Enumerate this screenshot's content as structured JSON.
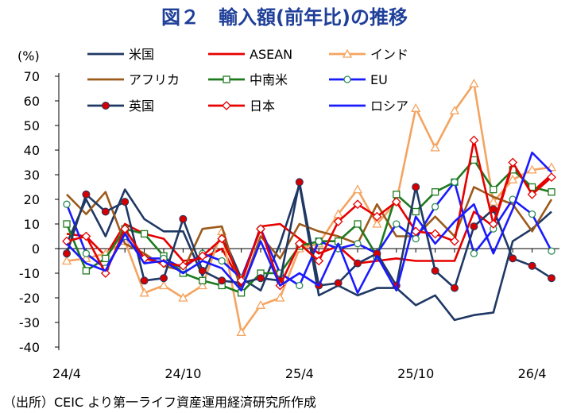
{
  "chart_data": {
    "type": "line",
    "title": "図２　輸入額(前年比)の推移",
    "ylabel": "(%)",
    "xlabel": "",
    "ylim": [
      -40,
      70
    ],
    "yticks": [
      -40,
      -30,
      -20,
      -10,
      0,
      10,
      20,
      30,
      40,
      50,
      60,
      70
    ],
    "x_tick_labels": [
      "24/4",
      "24/10",
      "25/4",
      "25/10",
      "26/4"
    ],
    "x_tick_index": [
      0,
      6,
      12,
      18,
      24
    ],
    "grid": false,
    "legend_position": "top",
    "source_note": "（出所）CEIC より第一ライフ資産運用経済研究所作成",
    "series": [
      {
        "name": "米国",
        "color": "#1f3864",
        "marker": "none",
        "values": [
          2,
          20,
          5,
          24,
          12,
          7,
          7,
          -11,
          6,
          -12,
          -17,
          2,
          26,
          -19,
          -15,
          -19,
          -16,
          -16,
          -23,
          -19,
          -29,
          -27,
          -26,
          3,
          8,
          15
        ]
      },
      {
        "name": "ASEAN",
        "color": "#e60000",
        "marker": "none",
        "values": [
          6,
          5,
          -3,
          10,
          6,
          4,
          -5,
          -4,
          0,
          -14,
          9,
          10,
          4,
          -2,
          1,
          -6,
          -5,
          -4,
          -5,
          -5,
          -5,
          15,
          9,
          34,
          23,
          30
        ]
      },
      {
        "name": "インド",
        "color": "#f4a460",
        "marker": "triangle",
        "values": [
          -5,
          -4,
          -2,
          3,
          -18,
          -15,
          -20,
          -15,
          7,
          -34,
          -23,
          -20,
          0,
          2,
          14,
          24,
          10,
          19,
          57,
          41,
          56,
          67,
          19,
          28,
          32,
          33
        ]
      },
      {
        "name": "アフリカ",
        "color": "#9c5a1b",
        "marker": "none",
        "values": [
          22,
          14,
          23,
          2,
          -2,
          -7,
          -9,
          8,
          9,
          -17,
          5,
          -4,
          10,
          7,
          5,
          2,
          18,
          5,
          5,
          13,
          5,
          25,
          21,
          18,
          7,
          20
        ]
      },
      {
        "name": "中南米",
        "color": "#1e7a1e",
        "marker": "square",
        "values": [
          10,
          -9,
          -4,
          8,
          6,
          -3,
          -10,
          -13,
          -15,
          -18,
          -10,
          -10,
          1,
          3,
          3,
          10,
          -3,
          22,
          15,
          23,
          27,
          36,
          24,
          32,
          25,
          23
        ]
      },
      {
        "name": "EU",
        "color": "#1a1aff",
        "marker": "circle",
        "values": [
          18,
          -2,
          -8,
          5,
          -4,
          -4,
          -8,
          -2,
          -5,
          -12,
          8,
          -10,
          -15,
          3,
          0,
          2,
          -2,
          10,
          4,
          17,
          27,
          -2,
          8,
          20,
          14,
          -1
        ]
      },
      {
        "name": "英国",
        "color": "#1f3864",
        "marker": "dot",
        "values": [
          -2,
          22,
          15,
          19,
          -13,
          -12,
          12,
          -9,
          -13,
          -14,
          -12,
          -13,
          27,
          -15,
          -14,
          -6,
          -2,
          -15,
          25,
          -9,
          -16,
          9,
          16,
          -4,
          -7,
          -12
        ]
      },
      {
        "name": "日本",
        "color": "#e60000",
        "marker": "diamond",
        "values": [
          3,
          5,
          -10,
          8,
          -4,
          -6,
          -7,
          -3,
          4,
          -13,
          8,
          -15,
          2,
          -5,
          11,
          18,
          13,
          19,
          7,
          6,
          3,
          44,
          10,
          35,
          22,
          29
        ]
      },
      {
        "name": "ロシア",
        "color": "#1a1aff",
        "marker": "none",
        "values": [
          2,
          -6,
          -9,
          6,
          -6,
          -5,
          -10,
          -5,
          -8,
          -17,
          3,
          -15,
          -10,
          -15,
          2,
          -18,
          -3,
          -17,
          13,
          2,
          11,
          18,
          -2,
          16,
          39,
          31
        ]
      }
    ]
  }
}
